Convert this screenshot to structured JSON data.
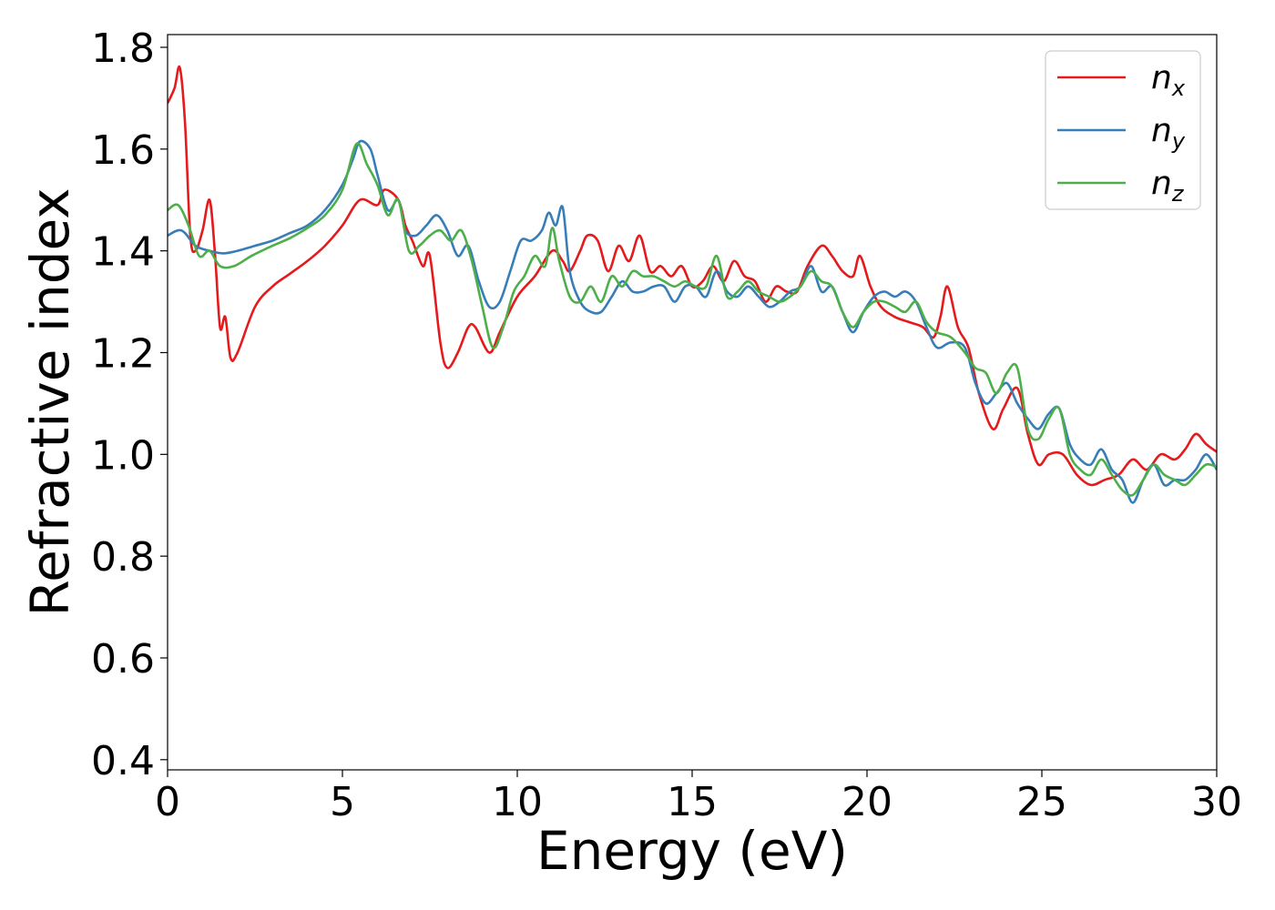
{
  "chart_data": {
    "type": "line",
    "xlabel": "Energy (eV)",
    "ylabel": "Refractive index",
    "xlim": [
      0,
      30
    ],
    "ylim": [
      0.38,
      1.825
    ],
    "xticks": [
      0,
      5,
      10,
      15,
      20,
      25,
      30
    ],
    "xtick_labels": [
      "0",
      "5",
      "10",
      "15",
      "20",
      "25",
      "30"
    ],
    "yticks": [
      0.4,
      0.6,
      0.8,
      1.0,
      1.2,
      1.4,
      1.6,
      1.8
    ],
    "ytick_labels": [
      "0.4",
      "0.6",
      "0.8",
      "1.0",
      "1.2",
      "1.4",
      "1.6",
      "1.8"
    ],
    "grid": false,
    "legend_position": "top-right",
    "series": [
      {
        "name": "n",
        "subscript": "x",
        "color": "#e41a1c",
        "points": [
          [
            0,
            1.69
          ],
          [
            0.2,
            1.72
          ],
          [
            0.35,
            1.76
          ],
          [
            0.5,
            1.65
          ],
          [
            0.65,
            1.43
          ],
          [
            0.8,
            1.4
          ],
          [
            1.0,
            1.44
          ],
          [
            1.2,
            1.5
          ],
          [
            1.35,
            1.4
          ],
          [
            1.5,
            1.25
          ],
          [
            1.65,
            1.27
          ],
          [
            1.8,
            1.19
          ],
          [
            2.0,
            1.2
          ],
          [
            2.5,
            1.29
          ],
          [
            3.0,
            1.33
          ],
          [
            3.5,
            1.355
          ],
          [
            4.0,
            1.38
          ],
          [
            4.5,
            1.41
          ],
          [
            5.0,
            1.45
          ],
          [
            5.5,
            1.5
          ],
          [
            6.0,
            1.49
          ],
          [
            6.2,
            1.52
          ],
          [
            6.6,
            1.5
          ],
          [
            6.8,
            1.45
          ],
          [
            7.0,
            1.42
          ],
          [
            7.3,
            1.37
          ],
          [
            7.5,
            1.39
          ],
          [
            7.8,
            1.22
          ],
          [
            8.0,
            1.17
          ],
          [
            8.3,
            1.2
          ],
          [
            8.6,
            1.25
          ],
          [
            8.8,
            1.25
          ],
          [
            9.2,
            1.2
          ],
          [
            9.5,
            1.24
          ],
          [
            10.0,
            1.31
          ],
          [
            10.5,
            1.35
          ],
          [
            11.0,
            1.4
          ],
          [
            11.3,
            1.38
          ],
          [
            11.5,
            1.36
          ],
          [
            11.8,
            1.4
          ],
          [
            12.0,
            1.43
          ],
          [
            12.3,
            1.42
          ],
          [
            12.6,
            1.36
          ],
          [
            12.9,
            1.41
          ],
          [
            13.2,
            1.38
          ],
          [
            13.5,
            1.43
          ],
          [
            13.8,
            1.36
          ],
          [
            14.1,
            1.37
          ],
          [
            14.4,
            1.35
          ],
          [
            14.7,
            1.37
          ],
          [
            15.0,
            1.33
          ],
          [
            15.3,
            1.34
          ],
          [
            15.6,
            1.37
          ],
          [
            15.9,
            1.34
          ],
          [
            16.2,
            1.38
          ],
          [
            16.5,
            1.35
          ],
          [
            16.8,
            1.34
          ],
          [
            17.1,
            1.3
          ],
          [
            17.4,
            1.33
          ],
          [
            17.7,
            1.32
          ],
          [
            18.0,
            1.32
          ],
          [
            18.3,
            1.37
          ],
          [
            18.7,
            1.41
          ],
          [
            19.0,
            1.39
          ],
          [
            19.3,
            1.36
          ],
          [
            19.6,
            1.35
          ],
          [
            19.8,
            1.39
          ],
          [
            20.1,
            1.33
          ],
          [
            20.4,
            1.29
          ],
          [
            20.8,
            1.27
          ],
          [
            21.2,
            1.26
          ],
          [
            21.6,
            1.25
          ],
          [
            21.9,
            1.23
          ],
          [
            22.1,
            1.27
          ],
          [
            22.3,
            1.33
          ],
          [
            22.6,
            1.25
          ],
          [
            22.9,
            1.21
          ],
          [
            23.2,
            1.12
          ],
          [
            23.6,
            1.05
          ],
          [
            23.9,
            1.09
          ],
          [
            24.3,
            1.13
          ],
          [
            24.6,
            1.04
          ],
          [
            24.9,
            0.98
          ],
          [
            25.2,
            1.0
          ],
          [
            25.6,
            1.0
          ],
          [
            26.0,
            0.96
          ],
          [
            26.4,
            0.94
          ],
          [
            26.8,
            0.95
          ],
          [
            27.2,
            0.96
          ],
          [
            27.6,
            0.99
          ],
          [
            28.0,
            0.97
          ],
          [
            28.4,
            1.0
          ],
          [
            28.8,
            0.99
          ],
          [
            29.1,
            1.01
          ],
          [
            29.4,
            1.04
          ],
          [
            29.7,
            1.02
          ],
          [
            30.0,
            1.005
          ]
        ]
      },
      {
        "name": "n",
        "subscript": "y",
        "color": "#377eb8",
        "points": [
          [
            0,
            1.43
          ],
          [
            0.4,
            1.44
          ],
          [
            0.8,
            1.41
          ],
          [
            1.2,
            1.4
          ],
          [
            1.6,
            1.395
          ],
          [
            2.0,
            1.4
          ],
          [
            2.5,
            1.41
          ],
          [
            3.0,
            1.42
          ],
          [
            3.5,
            1.435
          ],
          [
            4.0,
            1.45
          ],
          [
            4.5,
            1.48
          ],
          [
            5.0,
            1.53
          ],
          [
            5.3,
            1.58
          ],
          [
            5.5,
            1.615
          ],
          [
            5.8,
            1.6
          ],
          [
            6.0,
            1.55
          ],
          [
            6.3,
            1.48
          ],
          [
            6.6,
            1.5
          ],
          [
            6.8,
            1.44
          ],
          [
            7.1,
            1.43
          ],
          [
            7.4,
            1.45
          ],
          [
            7.7,
            1.47
          ],
          [
            8.0,
            1.44
          ],
          [
            8.3,
            1.39
          ],
          [
            8.6,
            1.41
          ],
          [
            8.9,
            1.34
          ],
          [
            9.2,
            1.29
          ],
          [
            9.5,
            1.3
          ],
          [
            9.8,
            1.36
          ],
          [
            10.1,
            1.42
          ],
          [
            10.4,
            1.42
          ],
          [
            10.7,
            1.44
          ],
          [
            10.9,
            1.475
          ],
          [
            11.1,
            1.45
          ],
          [
            11.3,
            1.485
          ],
          [
            11.5,
            1.36
          ],
          [
            11.8,
            1.3
          ],
          [
            12.1,
            1.28
          ],
          [
            12.4,
            1.28
          ],
          [
            12.7,
            1.31
          ],
          [
            13.0,
            1.34
          ],
          [
            13.3,
            1.32
          ],
          [
            13.6,
            1.32
          ],
          [
            13.9,
            1.33
          ],
          [
            14.2,
            1.33
          ],
          [
            14.5,
            1.3
          ],
          [
            14.8,
            1.33
          ],
          [
            15.1,
            1.33
          ],
          [
            15.4,
            1.31
          ],
          [
            15.7,
            1.36
          ],
          [
            16.0,
            1.32
          ],
          [
            16.3,
            1.31
          ],
          [
            16.6,
            1.33
          ],
          [
            16.9,
            1.31
          ],
          [
            17.2,
            1.29
          ],
          [
            17.5,
            1.3
          ],
          [
            17.8,
            1.32
          ],
          [
            18.1,
            1.33
          ],
          [
            18.4,
            1.37
          ],
          [
            18.7,
            1.32
          ],
          [
            19.0,
            1.33
          ],
          [
            19.3,
            1.28
          ],
          [
            19.6,
            1.24
          ],
          [
            19.9,
            1.28
          ],
          [
            20.2,
            1.31
          ],
          [
            20.5,
            1.32
          ],
          [
            20.8,
            1.31
          ],
          [
            21.1,
            1.32
          ],
          [
            21.4,
            1.3
          ],
          [
            21.7,
            1.25
          ],
          [
            22.0,
            1.21
          ],
          [
            22.4,
            1.22
          ],
          [
            22.8,
            1.21
          ],
          [
            23.1,
            1.14
          ],
          [
            23.4,
            1.1
          ],
          [
            23.7,
            1.12
          ],
          [
            24.0,
            1.14
          ],
          [
            24.3,
            1.1
          ],
          [
            24.6,
            1.07
          ],
          [
            24.9,
            1.05
          ],
          [
            25.2,
            1.08
          ],
          [
            25.5,
            1.09
          ],
          [
            25.8,
            1.02
          ],
          [
            26.1,
            0.99
          ],
          [
            26.4,
            0.98
          ],
          [
            26.7,
            1.01
          ],
          [
            27.0,
            0.97
          ],
          [
            27.3,
            0.95
          ],
          [
            27.6,
            0.905
          ],
          [
            27.9,
            0.95
          ],
          [
            28.2,
            0.98
          ],
          [
            28.5,
            0.94
          ],
          [
            28.8,
            0.95
          ],
          [
            29.1,
            0.95
          ],
          [
            29.4,
            0.97
          ],
          [
            29.7,
            1.0
          ],
          [
            30.0,
            0.97
          ]
        ]
      },
      {
        "name": "n",
        "subscript": "z",
        "color": "#4daf4a",
        "points": [
          [
            0,
            1.48
          ],
          [
            0.3,
            1.49
          ],
          [
            0.6,
            1.45
          ],
          [
            0.9,
            1.39
          ],
          [
            1.2,
            1.4
          ],
          [
            1.5,
            1.37
          ],
          [
            1.9,
            1.37
          ],
          [
            2.4,
            1.39
          ],
          [
            3.0,
            1.41
          ],
          [
            3.5,
            1.425
          ],
          [
            4.0,
            1.445
          ],
          [
            4.5,
            1.47
          ],
          [
            5.0,
            1.52
          ],
          [
            5.4,
            1.61
          ],
          [
            5.7,
            1.57
          ],
          [
            6.0,
            1.53
          ],
          [
            6.3,
            1.47
          ],
          [
            6.6,
            1.5
          ],
          [
            6.9,
            1.4
          ],
          [
            7.2,
            1.41
          ],
          [
            7.5,
            1.43
          ],
          [
            7.8,
            1.44
          ],
          [
            8.1,
            1.42
          ],
          [
            8.4,
            1.44
          ],
          [
            8.7,
            1.38
          ],
          [
            9.0,
            1.29
          ],
          [
            9.3,
            1.21
          ],
          [
            9.6,
            1.25
          ],
          [
            9.9,
            1.32
          ],
          [
            10.2,
            1.35
          ],
          [
            10.5,
            1.39
          ],
          [
            10.8,
            1.37
          ],
          [
            11.0,
            1.445
          ],
          [
            11.2,
            1.38
          ],
          [
            11.5,
            1.31
          ],
          [
            11.8,
            1.3
          ],
          [
            12.1,
            1.33
          ],
          [
            12.4,
            1.3
          ],
          [
            12.7,
            1.35
          ],
          [
            13.0,
            1.33
          ],
          [
            13.3,
            1.36
          ],
          [
            13.6,
            1.35
          ],
          [
            13.9,
            1.35
          ],
          [
            14.2,
            1.34
          ],
          [
            14.5,
            1.33
          ],
          [
            14.8,
            1.34
          ],
          [
            15.1,
            1.33
          ],
          [
            15.4,
            1.33
          ],
          [
            15.7,
            1.39
          ],
          [
            16.0,
            1.31
          ],
          [
            16.3,
            1.32
          ],
          [
            16.6,
            1.34
          ],
          [
            16.9,
            1.32
          ],
          [
            17.2,
            1.31
          ],
          [
            17.5,
            1.3
          ],
          [
            17.8,
            1.31
          ],
          [
            18.1,
            1.33
          ],
          [
            18.4,
            1.36
          ],
          [
            18.7,
            1.34
          ],
          [
            19.0,
            1.33
          ],
          [
            19.3,
            1.28
          ],
          [
            19.6,
            1.25
          ],
          [
            19.9,
            1.28
          ],
          [
            20.2,
            1.3
          ],
          [
            20.5,
            1.3
          ],
          [
            20.8,
            1.29
          ],
          [
            21.1,
            1.28
          ],
          [
            21.4,
            1.3
          ],
          [
            21.7,
            1.26
          ],
          [
            22.0,
            1.24
          ],
          [
            22.4,
            1.23
          ],
          [
            22.8,
            1.2
          ],
          [
            23.1,
            1.17
          ],
          [
            23.4,
            1.16
          ],
          [
            23.7,
            1.12
          ],
          [
            24.0,
            1.16
          ],
          [
            24.3,
            1.17
          ],
          [
            24.6,
            1.05
          ],
          [
            24.9,
            1.03
          ],
          [
            25.2,
            1.07
          ],
          [
            25.5,
            1.09
          ],
          [
            25.8,
            1.0
          ],
          [
            26.1,
            0.97
          ],
          [
            26.4,
            0.96
          ],
          [
            26.7,
            0.99
          ],
          [
            27.0,
            0.96
          ],
          [
            27.3,
            0.93
          ],
          [
            27.6,
            0.92
          ],
          [
            27.9,
            0.95
          ],
          [
            28.2,
            0.98
          ],
          [
            28.5,
            0.96
          ],
          [
            28.8,
            0.95
          ],
          [
            29.1,
            0.94
          ],
          [
            29.4,
            0.96
          ],
          [
            29.7,
            0.98
          ],
          [
            30.0,
            0.975
          ]
        ]
      }
    ]
  }
}
